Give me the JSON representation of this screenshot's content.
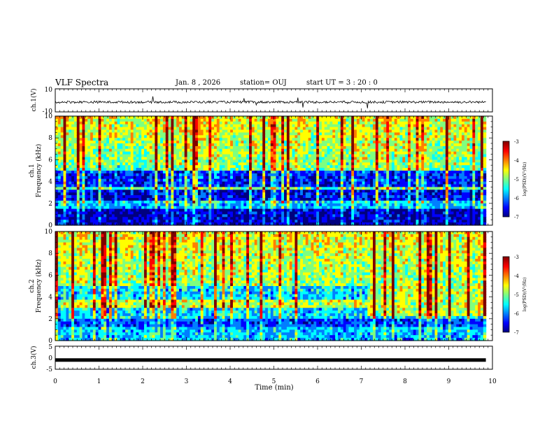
{
  "header": {
    "title": "VLF Spectra",
    "date": "Jan. 8 , 2026",
    "station": "station= OUJ",
    "start": "start UT = 3 : 20 : 0"
  },
  "colors": {
    "colormap": [
      "#00007f",
      "#0000ff",
      "#007fff",
      "#00ffff",
      "#7fff7f",
      "#ffff00",
      "#ff7f00",
      "#ff0000",
      "#7f0000"
    ],
    "trace": "#000000"
  },
  "chart_data": [
    {
      "type": "line",
      "name": "ch1-waveform",
      "ylabel": "ch.1(V)",
      "ylim": [
        -10,
        10
      ],
      "yticks": [
        "10",
        "-10"
      ],
      "xlim": [
        0,
        10
      ],
      "baseline": -1.5
    },
    {
      "type": "heatmap",
      "name": "ch1-spectrogram",
      "ylabel_lines": [
        "ch.1",
        "Frequency (kHz)"
      ],
      "ylim": [
        0,
        10
      ],
      "yticks": [
        "0",
        "2",
        "4",
        "6",
        "8",
        "10"
      ],
      "xlim": [
        0,
        9.85
      ],
      "colorbar": {
        "label": "log(PSD)(V²/Hz)",
        "range": [
          -7,
          -3
        ],
        "ticks": [
          "-3",
          "-4",
          "-5",
          "-6",
          "-7"
        ]
      }
    },
    {
      "type": "heatmap",
      "name": "ch2-spectrogram",
      "ylabel_lines": [
        "ch.2",
        "Frequency (kHz)"
      ],
      "ylim": [
        0,
        10
      ],
      "yticks": [
        "0",
        "2",
        "4",
        "6",
        "8",
        "10"
      ],
      "xlim": [
        0,
        9.85
      ],
      "colorbar": {
        "label": "log(PSD)(V²/Hz)",
        "range": [
          -7,
          -3
        ],
        "ticks": [
          "-3",
          "-4",
          "-5",
          "-6",
          "-7"
        ]
      }
    },
    {
      "type": "line",
      "name": "ch3-waveform",
      "ylabel": "ch.3(V)",
      "ylim": [
        -5,
        5
      ],
      "yticks": [
        "5",
        "0",
        "-5"
      ],
      "xlim": [
        0,
        10
      ],
      "value": -1
    }
  ],
  "xaxis": {
    "label": "Time (min)",
    "ticks": [
      "0",
      "1",
      "2",
      "3",
      "4",
      "5",
      "6",
      "7",
      "8",
      "9",
      "10"
    ]
  }
}
